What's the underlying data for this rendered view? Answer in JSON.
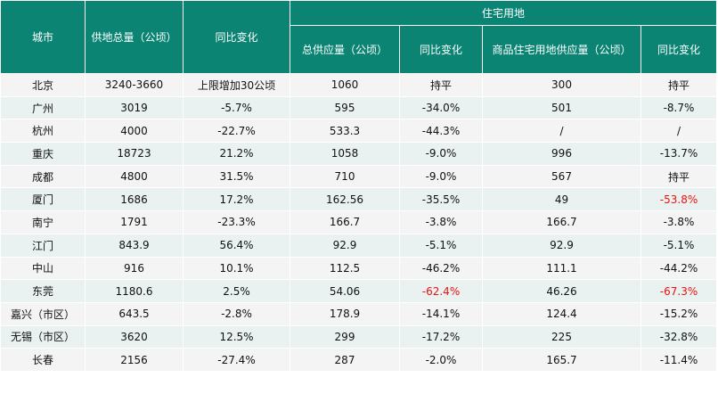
{
  "headers": {
    "city": "城市",
    "total_supply": "供地总量（公顷）",
    "total_yoy": "同比变化",
    "residential_group": "住宅用地",
    "res_supply": "总供应量（公顷）",
    "res_yoy": "同比变化",
    "commercial_res_supply": "商品住宅用地供应量（公顷）",
    "commercial_res_yoy": "同比变化"
  },
  "highlight_color": "#ee1111",
  "header_color": "#0b8474",
  "rows": [
    {
      "city": "北京",
      "total": "3240-3660",
      "total_yoy": "上限增加30公顷",
      "res": "1060",
      "res_yoy": "持平",
      "com": "300",
      "com_yoy": "持平",
      "res_yoy_red": false,
      "com_yoy_red": false
    },
    {
      "city": "广州",
      "total": "3019",
      "total_yoy": "-5.7%",
      "res": "595",
      "res_yoy": "-34.0%",
      "com": "501",
      "com_yoy": "-8.7%",
      "res_yoy_red": false,
      "com_yoy_red": false
    },
    {
      "city": "杭州",
      "total": "4000",
      "total_yoy": "-22.7%",
      "res": "533.3",
      "res_yoy": "-44.3%",
      "com": "/",
      "com_yoy": "/",
      "res_yoy_red": false,
      "com_yoy_red": false
    },
    {
      "city": "重庆",
      "total": "18723",
      "total_yoy": "21.2%",
      "res": "1058",
      "res_yoy": "-9.0%",
      "com": "996",
      "com_yoy": "-13.7%",
      "res_yoy_red": false,
      "com_yoy_red": false
    },
    {
      "city": "成都",
      "total": "4800",
      "total_yoy": "31.5%",
      "res": "710",
      "res_yoy": "-9.0%",
      "com": "567",
      "com_yoy": "持平",
      "res_yoy_red": false,
      "com_yoy_red": false
    },
    {
      "city": "厦门",
      "total": "1686",
      "total_yoy": "17.2%",
      "res": "162.56",
      "res_yoy": "-35.5%",
      "com": "49",
      "com_yoy": "-53.8%",
      "res_yoy_red": false,
      "com_yoy_red": true
    },
    {
      "city": "南宁",
      "total": "1791",
      "total_yoy": "-23.3%",
      "res": "166.7",
      "res_yoy": "-3.8%",
      "com": "166.7",
      "com_yoy": "-3.8%",
      "res_yoy_red": false,
      "com_yoy_red": false
    },
    {
      "city": "江门",
      "total": "843.9",
      "total_yoy": "56.4%",
      "res": "92.9",
      "res_yoy": "-5.1%",
      "com": "92.9",
      "com_yoy": "-5.1%",
      "res_yoy_red": false,
      "com_yoy_red": false
    },
    {
      "city": "中山",
      "total": "916",
      "total_yoy": "10.1%",
      "res": "112.5",
      "res_yoy": "-46.2%",
      "com": "111.1",
      "com_yoy": "-44.2%",
      "res_yoy_red": false,
      "com_yoy_red": false
    },
    {
      "city": "东莞",
      "total": "1180.6",
      "total_yoy": "2.5%",
      "res": "54.06",
      "res_yoy": "-62.4%",
      "com": "46.26",
      "com_yoy": "-67.3%",
      "res_yoy_red": true,
      "com_yoy_red": true
    },
    {
      "city": "嘉兴（市区）",
      "total": "643.5",
      "total_yoy": "-2.8%",
      "res": "178.9",
      "res_yoy": "-14.1%",
      "com": "124.4",
      "com_yoy": "-15.2%",
      "res_yoy_red": false,
      "com_yoy_red": false
    },
    {
      "city": "无锡（市区）",
      "total": "3620",
      "total_yoy": "12.5%",
      "res": "299",
      "res_yoy": "-17.2%",
      "com": "225",
      "com_yoy": "-32.8%",
      "res_yoy_red": false,
      "com_yoy_red": false
    },
    {
      "city": "长春",
      "total": "2156",
      "total_yoy": "-27.4%",
      "res": "287",
      "res_yoy": "-2.0%",
      "com": "165.7",
      "com_yoy": "-11.4%",
      "res_yoy_red": false,
      "com_yoy_red": false
    }
  ]
}
